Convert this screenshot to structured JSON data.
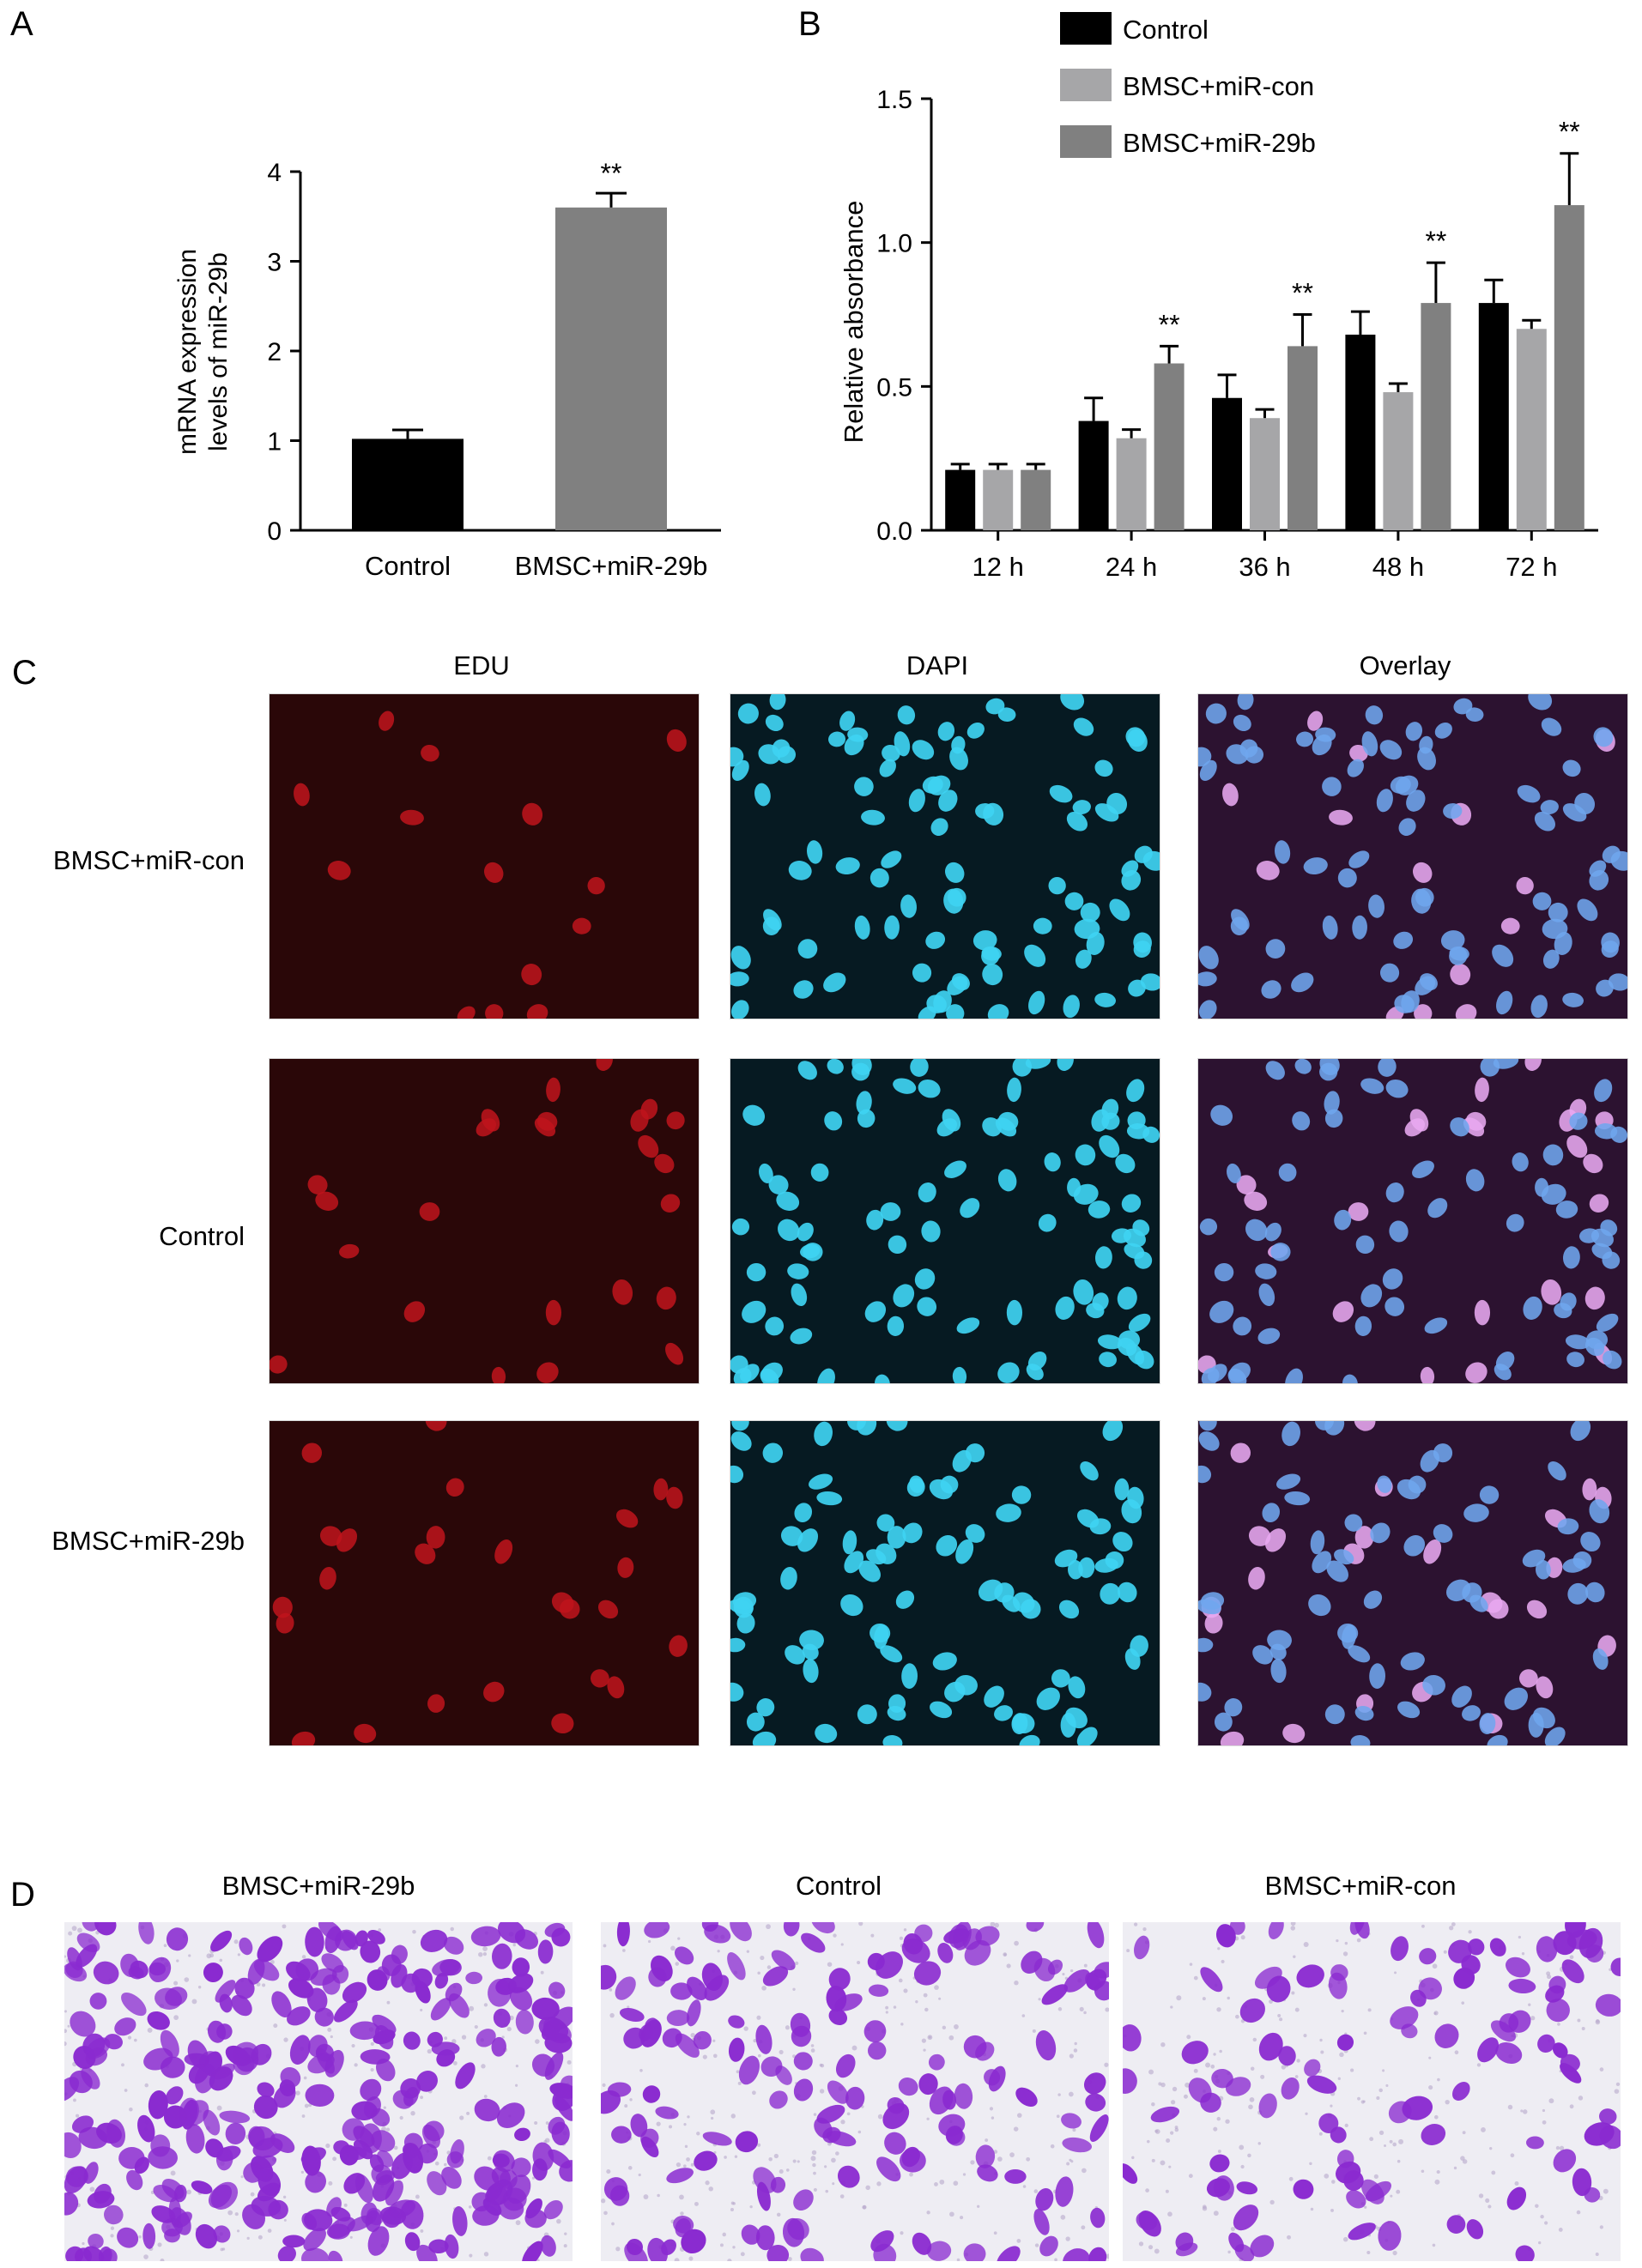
{
  "panels": {
    "a": {
      "letter": "A"
    },
    "b": {
      "letter": "B"
    },
    "c": {
      "letter": "C"
    },
    "d": {
      "letter": "D"
    }
  },
  "chart_data": [
    {
      "type": "bar",
      "panel": "A",
      "categories": [
        "Control",
        "BMSC+miR-29b"
      ],
      "values": [
        1.02,
        3.6
      ],
      "errors": [
        0.1,
        0.16
      ],
      "significance": [
        "",
        "**"
      ],
      "ylabel": "mRNA expression levels of miR-29b",
      "ylabel_lines": [
        "mRNA expression",
        "levels of miR-29b"
      ],
      "ylim": [
        0,
        4
      ],
      "yticks": [
        "0",
        "1",
        "2",
        "3",
        "4"
      ],
      "colors": [
        "#000000",
        "#808080"
      ],
      "grid": false
    },
    {
      "type": "bar",
      "panel": "B",
      "categories": [
        "12 h",
        "24 h",
        "36 h",
        "48 h",
        "72 h"
      ],
      "series": [
        {
          "name": "Control",
          "color": "#000000",
          "values": [
            0.21,
            0.38,
            0.46,
            0.68,
            0.79
          ],
          "errors": [
            0.02,
            0.08,
            0.08,
            0.08,
            0.08
          ]
        },
        {
          "name": "BMSC+miR-con",
          "color": "#a6a6a8",
          "values": [
            0.21,
            0.32,
            0.39,
            0.48,
            0.7
          ],
          "errors": [
            0.02,
            0.03,
            0.03,
            0.03,
            0.03
          ]
        },
        {
          "name": "BMSC+miR-29b",
          "color": "#808080",
          "values": [
            0.21,
            0.58,
            0.64,
            0.79,
            1.13
          ],
          "errors": [
            0.02,
            0.06,
            0.11,
            0.14,
            0.18
          ]
        }
      ],
      "significance": [
        "",
        "**",
        "**",
        "**",
        "**"
      ],
      "ylabel": "Relative absorbance",
      "ylim": [
        0,
        1.5
      ],
      "yticks": [
        "0.0",
        "0.5",
        "1.0",
        "1.5"
      ],
      "legend_position": "top",
      "grid": false
    }
  ],
  "edu_panel": {
    "columns": [
      "EDU",
      "DAPI",
      "Overlay"
    ],
    "rows": [
      {
        "label": "BMSC+miR-con",
        "edu_cells": 14
      },
      {
        "label": "Control",
        "edu_cells": 24
      },
      {
        "label": "BMSC+miR-29b",
        "edu_cells": 26
      }
    ],
    "colors": {
      "edu_bg": "#2a0708",
      "edu_cell": "#c0141c",
      "dapi_bg": "#061a22",
      "dapi_cell": "#3fd2f2",
      "overlay_bg": "#2c1230",
      "overlay_cell": "#6fa6ee",
      "overlay_merged": "#e8a8f0"
    }
  },
  "transwell_panel": {
    "images": [
      {
        "label": "BMSC+miR-29b",
        "density": 0.9
      },
      {
        "label": "Control",
        "density": 0.45
      },
      {
        "label": "BMSC+miR-con",
        "density": 0.3
      }
    ],
    "colors": {
      "bg": "#eeedf3",
      "cell": "#8a2ad0"
    }
  }
}
